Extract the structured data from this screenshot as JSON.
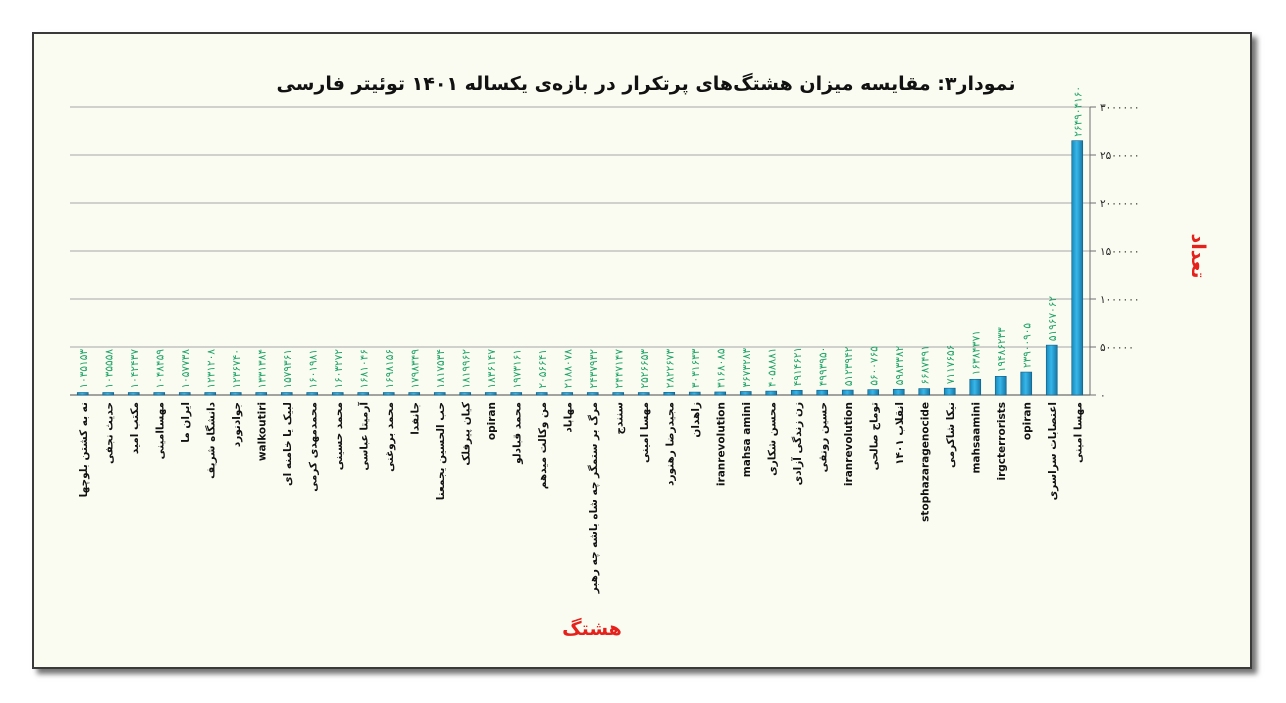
{
  "chart_data": {
    "type": "bar",
    "title": "نمودار۳: مقایسه میزان هشتگ‌های پرتکرار در بازه‌ی یکساله ۱۴۰۱ توئیتر فارسی",
    "xlabel": "هشتگ",
    "ylabel": "تعداد",
    "ylim": [
      0,
      3000000
    ],
    "yticks": [
      "۰",
      "۵۰۰۰۰۰",
      "۱۰۰۰۰۰۰",
      "۱۵۰۰۰۰۰",
      "۲۰۰۰۰۰۰",
      "۲۵۰۰۰۰۰",
      "۳۰۰۰۰۰۰"
    ],
    "ytick_values": [
      0,
      500000,
      1000000,
      1500000,
      2000000,
      2500000,
      3000000
    ],
    "grid": true,
    "bar_color": "#29a8de",
    "data_label_color": "#1fa36a",
    "categories": [
      "نه_به_کشتن_بلوچها",
      "حدیث_نجفی",
      "مکتب_امید",
      "مهساامینی",
      "ایران_ما",
      "دانشگاه_شریف",
      "جوادنورد",
      "walkoutiri",
      "لبیک_یا_خامنه_ای",
      "محمدمهدی_کرمی",
      "محمد_حسینی",
      "آرمیتا_عباسی",
      "محمد_بروغنی",
      "جانفدا",
      "حب_الحسین_یجمعنا",
      "کیان_پیرفلک",
      "opiran",
      "محمد_قبادلو",
      "من_وکالت_میدهم",
      "مهاباد",
      "مرگ_بر_ستمگر_چه_شاه_باشه_چه_رهبر",
      "سنندج",
      "مهسا_امینی",
      "مجیدرضا_رهنورد",
      "زاهدان",
      "iranrevolution",
      "mahsa_amini",
      "محسن_شکاری",
      "زن_زندگی_آزادی",
      "حسین_رونقی",
      "iranrevolution",
      "توماج_صالحی",
      "انقلاب_۱۴۰۱",
      "stophazaragenocide",
      "نیکا_شاکرمی",
      "mahsaamini",
      "irgcterrorists",
      "opiran",
      "اعتصابات_سراسری",
      "مهسا_امینی"
    ],
    "values": [
      1035153,
      1035558,
      1042437,
      1048459,
      1057738,
      1231208,
      1236740,
      1331384,
      1579361,
      1601981,
      1603272,
      1681046,
      1698156,
      1798349,
      1817534,
      1819962,
      1836147,
      1973161,
      2056641,
      2188078,
      2437932,
      2447147,
      2526653,
      2822673,
      3031633,
      3168085,
      3673283,
      4058881,
      4914621,
      4993950,
      5123942,
      5600765,
      5983382,
      6687491,
      7117656,
      16384371,
      19486233,
      23900905,
      51967062,
      264904160
    ],
    "data_labels": [
      "۱۰۳۵۱۵۳",
      "۱۰۳۵۵۵۸",
      "۱۰۴۲۴۳۷",
      "۱۰۴۸۴۵۹",
      "۱۰۵۷۷۳۸",
      "۱۲۳۱۲۰۸",
      "۱۲۳۶۷۴۰",
      "۱۳۳۱۳۸۴",
      "۱۵۷۹۳۶۱",
      "۱۶۰۱۹۸۱",
      "۱۶۰۳۲۷۲",
      "۱۶۸۱۰۴۶",
      "۱۶۹۸۱۵۶",
      "۱۷۹۸۳۴۹",
      "۱۸۱۷۵۳۴",
      "۱۸۱۹۹۶۲",
      "۱۸۳۶۱۴۷",
      "۱۹۷۳۱۶۱",
      "۲۰۵۶۶۴۱",
      "۲۱۸۸۰۷۸",
      "۲۴۳۷۹۳۲",
      "۲۴۴۷۱۴۷",
      "۲۵۲۶۶۵۳",
      "۲۸۲۲۶۷۳",
      "۳۰۳۱۶۳۳",
      "۳۱۶۸۰۸۵",
      "۳۶۷۳۲۸۳",
      "۴۰۵۸۸۸۱",
      "۴۹۱۴۶۲۱",
      "۴۹۹۳۹۵۰",
      "۵۱۲۳۹۴۲",
      "۵۶۰۰۷۶۵",
      "۵۹۸۳۳۸۲",
      "۶۶۸۷۴۹۱",
      "۷۱۱۷۶۵۶",
      "۱۶۳۸۴۳۷۱",
      "۱۹۴۸۶۲۳۳",
      "۲۳۹۰۰۹۰۵",
      "۵۱۹۶۷۰۶۲",
      "۲۶۴۹۰۴۱۶۰"
    ]
  }
}
